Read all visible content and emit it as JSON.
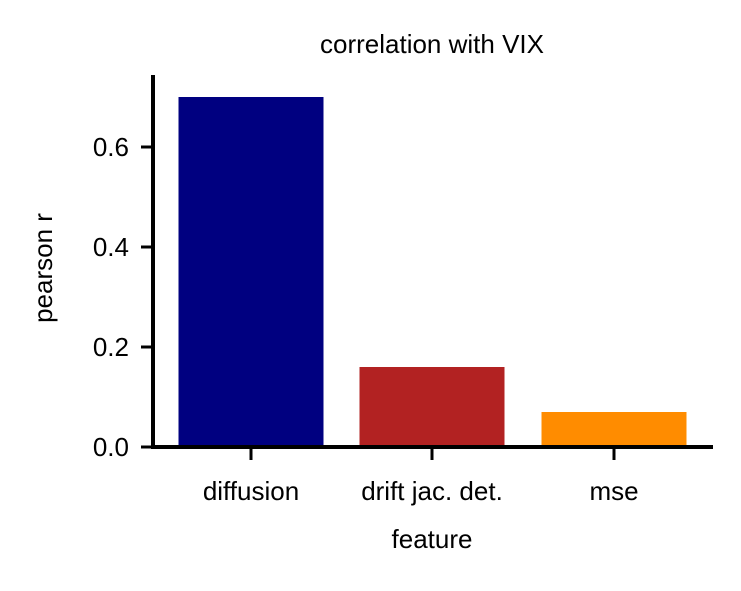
{
  "chart_data": {
    "type": "bar",
    "title": "correlation with VIX",
    "xlabel": "feature",
    "ylabel": "pearson r",
    "categories": [
      "diffusion",
      "drift jac. det.",
      "mse"
    ],
    "values": [
      0.7,
      0.16,
      0.07
    ],
    "colors": [
      "#000080",
      "#b22222",
      "#ff8c00"
    ],
    "ylim": [
      0,
      0.74
    ],
    "yticks": [
      0.0,
      0.2,
      0.4,
      0.6
    ],
    "ytick_labels": [
      "0.0",
      "0.2",
      "0.4",
      "0.6"
    ],
    "grid": false,
    "legend": "none"
  }
}
